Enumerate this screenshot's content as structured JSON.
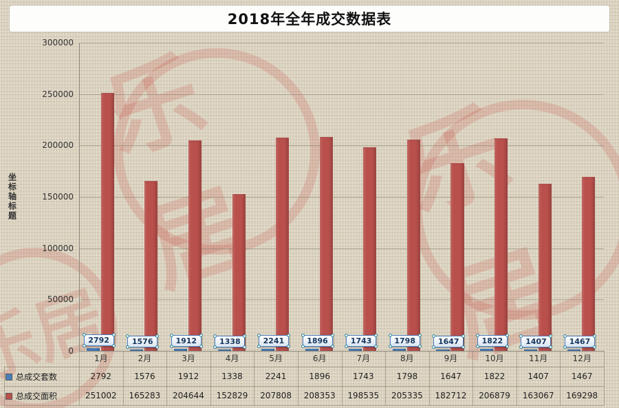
{
  "chart_data": {
    "type": "bar",
    "title": "2018年全年成交数据表",
    "ylabel": "坐标轴标题",
    "xlabel": "",
    "categories": [
      "1月",
      "2月",
      "3月",
      "4月",
      "5月",
      "6月",
      "7月",
      "8月",
      "9月",
      "10月",
      "11月",
      "12月"
    ],
    "series": [
      {
        "name": "总成交套数",
        "color": "#4a7ebb",
        "values": [
          2792,
          1576,
          1912,
          1338,
          2241,
          1896,
          1743,
          1798,
          1647,
          1822,
          1407,
          1467
        ]
      },
      {
        "name": "总成交面积",
        "color": "#b9504c",
        "values": [
          251002,
          165283,
          204644,
          152829,
          207808,
          208353,
          198535,
          205335,
          182712,
          206879,
          163067,
          169298
        ]
      }
    ],
    "ylim": [
      0,
      300000
    ],
    "yticks": [
      0,
      50000,
      100000,
      150000,
      200000,
      250000,
      300000
    ],
    "grid": true,
    "legend_position": "table-left",
    "data_labels_series": "总成交套数"
  },
  "watermark": {
    "text": "乐居"
  },
  "colors": {
    "background": "#d9d0bc",
    "bar_red": "#b9504c",
    "bar_blue": "#4a7ebb",
    "watermark_red": "#bf2e28",
    "callout_border": "#4f81bd",
    "callout_text": "#17375e"
  }
}
